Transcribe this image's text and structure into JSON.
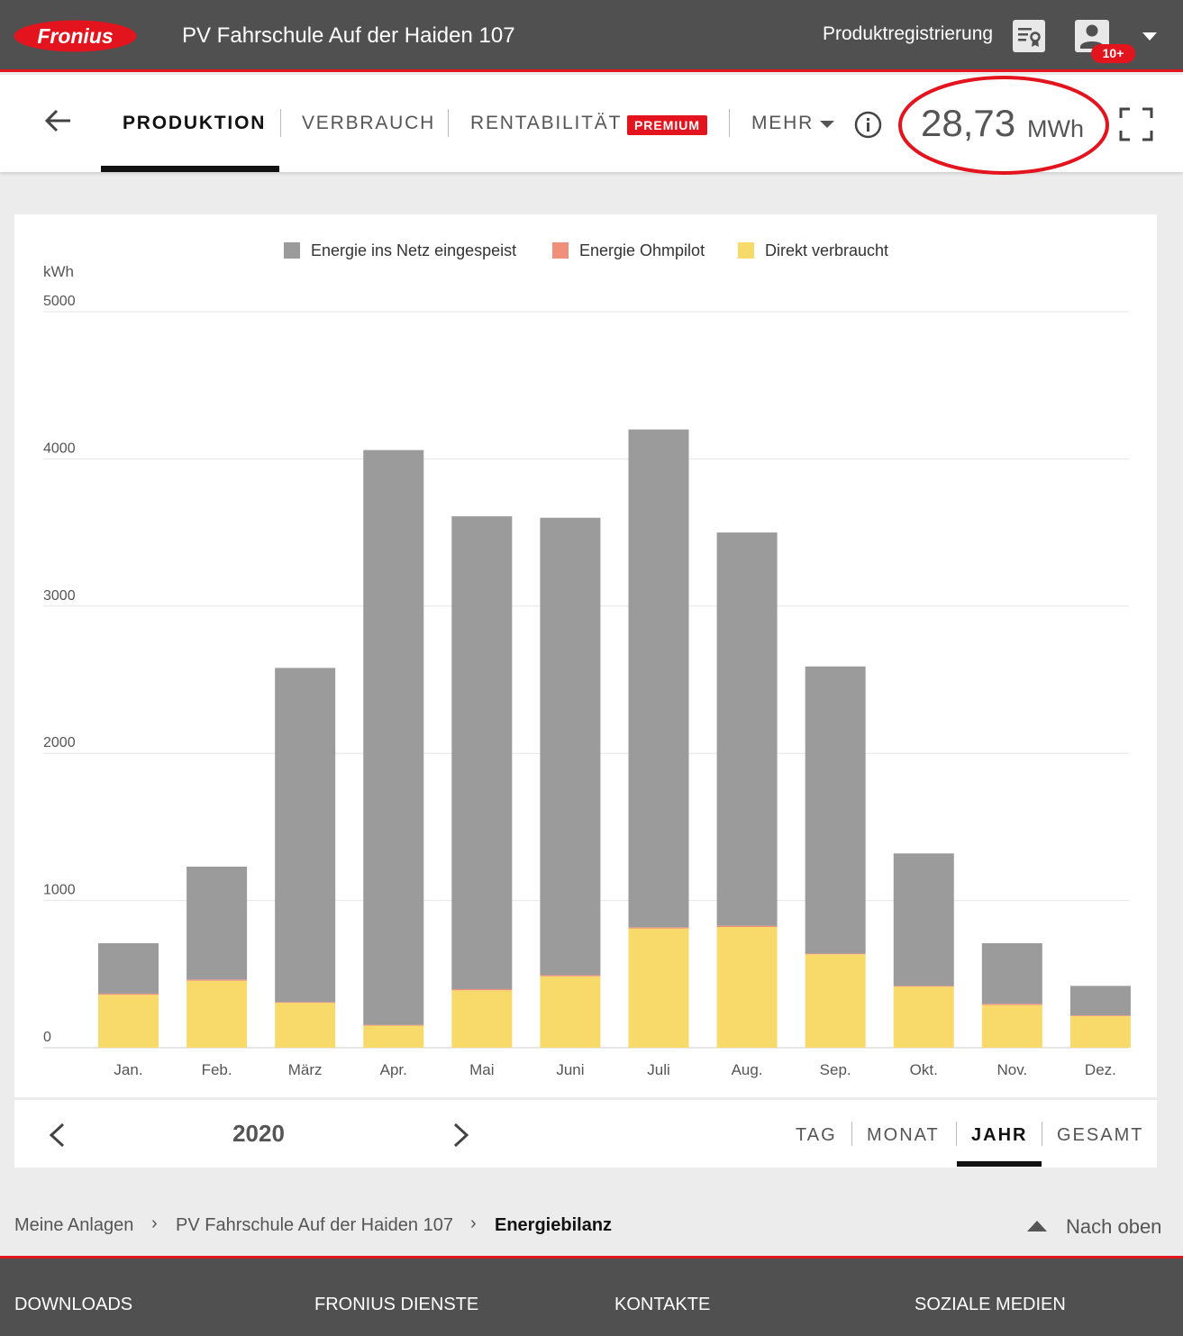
{
  "header": {
    "brand": "Fronius",
    "site_title": "PV Fahrschule Auf der Haiden 107",
    "product_registration_label": "Produktregistrierung",
    "notification_count": "10+"
  },
  "tabs": {
    "production": "PRODUKTION",
    "consumption": "VERBRAUCH",
    "profitability": "RENTABILITÄT",
    "premium_badge": "PREMIUM",
    "more": "MEHR",
    "active": "production"
  },
  "total": {
    "value": "28,73",
    "unit": "MWh"
  },
  "legend": {
    "fed_into_grid": "Energie ins Netz eingespeist",
    "ohmpilot": "Energie Ohmpilot",
    "direct_consumed": "Direkt verbraucht"
  },
  "colors": {
    "brand_red": "#e3141d",
    "header_bg": "#505050",
    "series_grid": "#9b9b9b",
    "series_ohmpilot": "#f0907a",
    "series_direct": "#f8da6a"
  },
  "chart_data": {
    "type": "bar",
    "stacked": true,
    "ylabel": "kWh",
    "ylim": [
      0,
      5000
    ],
    "yticks": [
      0,
      1000,
      2000,
      3000,
      4000,
      5000
    ],
    "grid": true,
    "legend_position": "top-center",
    "categories": [
      "Jan.",
      "Feb.",
      "März",
      "Apr.",
      "Mai",
      "Juni",
      "Juli",
      "Aug.",
      "Sep.",
      "Okt.",
      "Nov.",
      "Dez."
    ],
    "series": [
      {
        "name": "Direkt verbraucht",
        "color": "#f8da6a",
        "values": [
          360,
          455,
          305,
          150,
          390,
          485,
          810,
          820,
          635,
          415,
          290,
          215
        ]
      },
      {
        "name": "Energie Ohmpilot",
        "color": "#f0907a",
        "values": [
          8,
          8,
          5,
          5,
          8,
          8,
          8,
          8,
          5,
          5,
          8,
          5
        ]
      },
      {
        "name": "Energie ins Netz eingespeist",
        "color": "#9b9b9b",
        "values": [
          342,
          767,
          2270,
          3905,
          3212,
          3107,
          3382,
          2672,
          1950,
          900,
          412,
          200
        ]
      }
    ]
  },
  "period": {
    "year": "2020",
    "tabs": [
      "TAG",
      "MONAT",
      "JAHR",
      "GESAMT"
    ],
    "active": "JAHR"
  },
  "breadcrumb": {
    "items": [
      "Meine Anlagen",
      "PV Fahrschule Auf der Haiden 107",
      "Energiebilanz"
    ],
    "separator": "›",
    "to_top": "Nach oben"
  },
  "footer": {
    "links": [
      "DOWNLOADS",
      "FRONIUS DIENSTE",
      "KONTAKTE",
      "SOZIALE MEDIEN"
    ]
  }
}
